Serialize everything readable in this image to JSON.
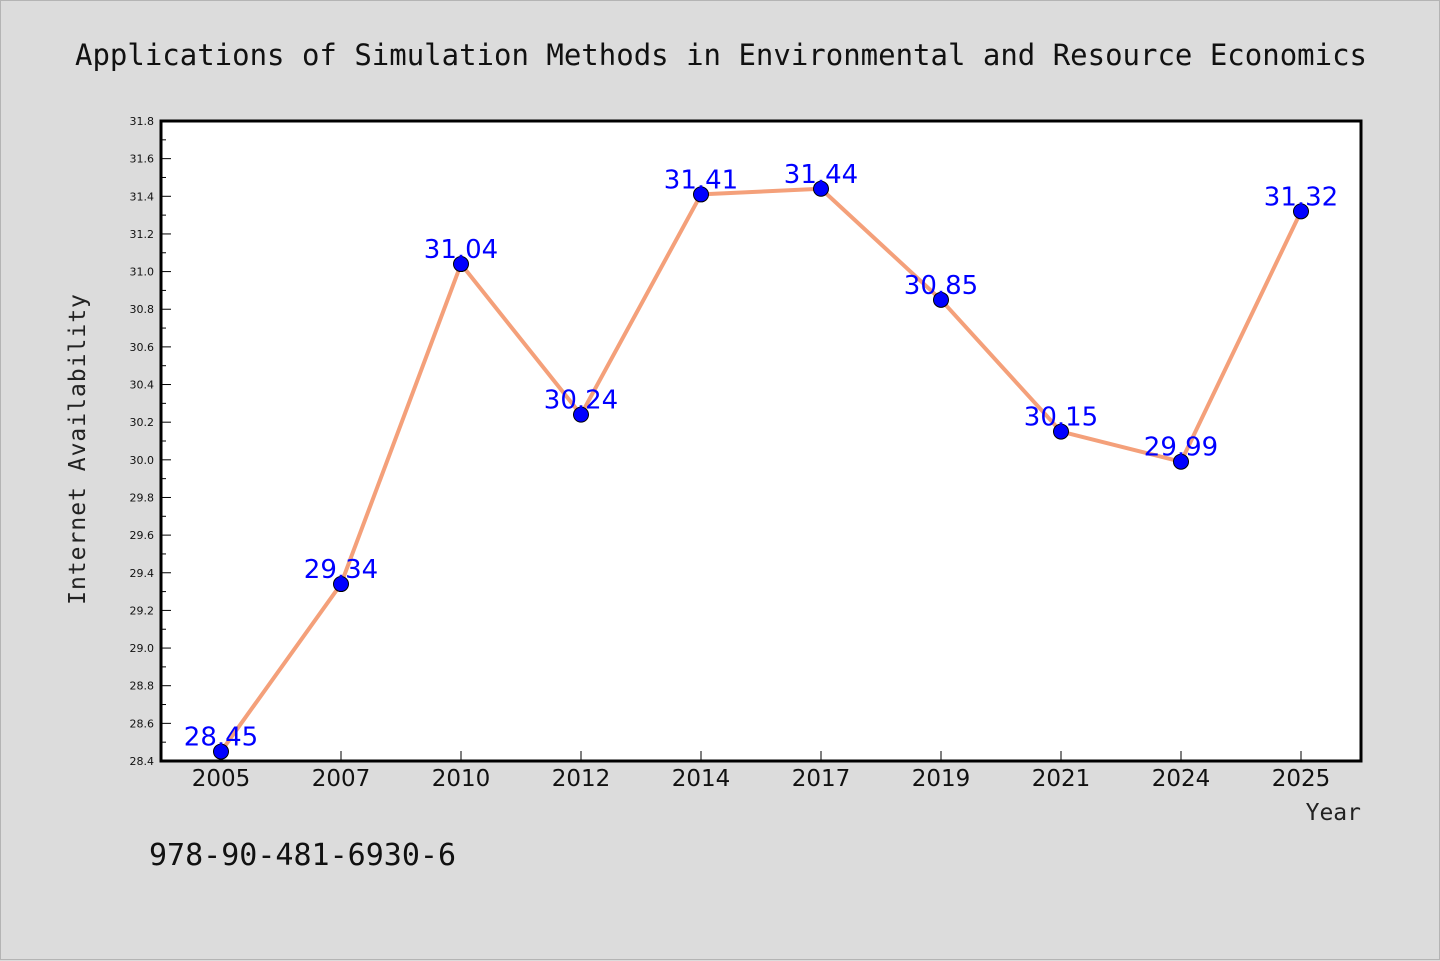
{
  "chart_data": {
    "type": "line",
    "title": "Applications of Simulation Methods in Environmental and Resource Economics",
    "xlabel": "Year",
    "ylabel": "Internet Availability",
    "categories": [
      "2005",
      "2007",
      "2010",
      "2012",
      "2014",
      "2017",
      "2019",
      "2021",
      "2024",
      "2025"
    ],
    "series": [
      {
        "values": [
          28.45,
          29.34,
          31.04,
          30.24,
          31.41,
          31.44,
          30.85,
          30.15,
          29.99,
          31.32
        ],
        "line_color": "#f4a07a",
        "marker_color": "#0000ff"
      }
    ],
    "data_labels": [
      "28.45",
      "29.34",
      "31.04",
      "30.24",
      "31.41",
      "31.44",
      "30.85",
      "30.15",
      "29.99",
      "31.32"
    ],
    "ylim": [
      28.4,
      31.8
    ],
    "yticks": [
      "28.4",
      "28.6",
      "28.8",
      "29.0",
      "29.2",
      "29.4",
      "29.6",
      "29.8",
      "30.0",
      "30.2",
      "30.4",
      "30.6",
      "30.8",
      "31.0",
      "31.2",
      "31.4",
      "31.6",
      "31.8"
    ],
    "grid": false,
    "legend": "none"
  },
  "footer": {
    "isbn": "978-90-481-6930-6"
  },
  "colors": {
    "background": "#dcdcdc",
    "plot_background": "#ffffff",
    "label_color": "#0000ff"
  }
}
